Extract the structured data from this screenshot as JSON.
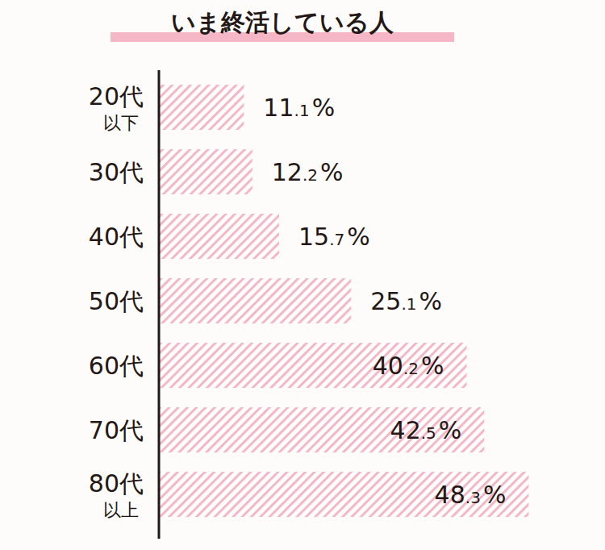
{
  "chart_data": {
    "type": "bar",
    "orientation": "horizontal",
    "title": "いま終活している人",
    "categories": [
      "20代以下",
      "30代",
      "40代",
      "50代",
      "60代",
      "70代",
      "80代以上"
    ],
    "values": [
      11.1,
      12.2,
      15.7,
      25.1,
      40.2,
      42.5,
      48.3
    ],
    "value_labels": [
      "11.1%",
      "12.2%",
      "15.7%",
      "25.1%",
      "40.2%",
      "42.5%",
      "48.3%"
    ],
    "color": "#f5b6c6",
    "xlim": [
      0,
      55
    ],
    "data_labels": true,
    "tick_labels": "y",
    "grid": false
  }
}
